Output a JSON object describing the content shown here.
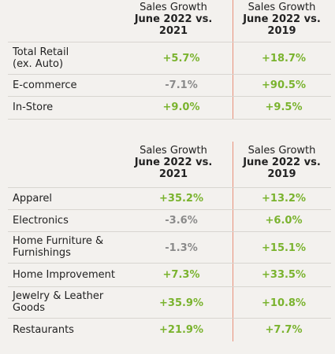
{
  "table1": {
    "header": {
      "col1": [
        "Sales Growth",
        "June 2022 vs.",
        "2021"
      ],
      "col2": [
        "Sales Growth",
        "June 2022 vs.",
        "2019"
      ]
    },
    "rows": [
      {
        "label": "Total Retail\n(ex. Auto)",
        "v1": "+5.7%",
        "v2": "+18.7%"
      },
      {
        "label": "E-commerce",
        "v1": "-7.1%",
        "v2": "+90.5%"
      },
      {
        "label": "In-Store",
        "v1": "+9.0%",
        "v2": "+9.5%"
      }
    ]
  },
  "table2": {
    "header": {
      "col1": [
        "Sales Growth",
        "June 2022 vs.",
        "2021"
      ],
      "col2": [
        "Sales Growth",
        "June 2022 vs.",
        "2019"
      ]
    },
    "rows": [
      {
        "label": "Apparel",
        "v1": "+35.2%",
        "v2": "+13.2%"
      },
      {
        "label": "Electronics",
        "v1": "-3.6%",
        "v2": "+6.0%"
      },
      {
        "label": "Home Furniture &\nFurnishings",
        "v1": "-1.3%",
        "v2": "+15.1%"
      },
      {
        "label": "Home Improvement",
        "v1": "+7.3%",
        "v2": "+33.5%"
      },
      {
        "label": "Jewelry & Leather\nGoods",
        "v1": "+35.9%",
        "v2": "+10.8%"
      },
      {
        "label": "Restaurants",
        "v1": "+21.9%",
        "v2": "+7.7%"
      }
    ]
  },
  "colors": {
    "positive": "#7ab32e",
    "negative": "#8a8a8a",
    "divider": "#e8907a"
  }
}
